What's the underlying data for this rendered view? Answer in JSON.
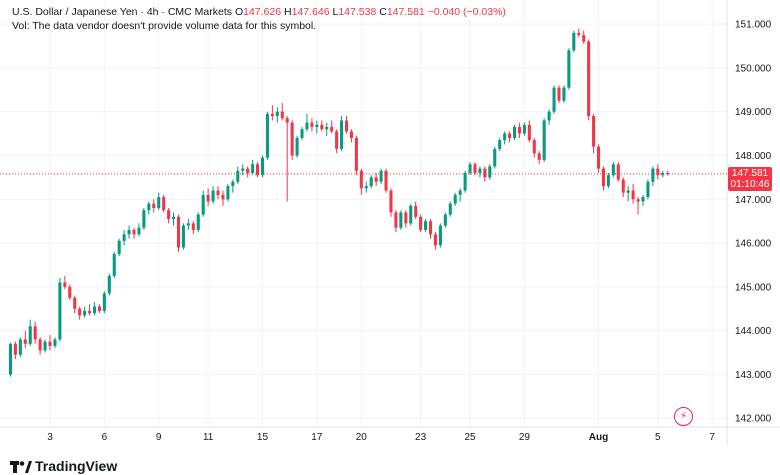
{
  "legend": {
    "symbol": "U.S. Dollar / Japanese Yen · 4h · CMC Markets",
    "o_label": "O",
    "o_value": "147.626",
    "h_label": "H",
    "h_value": "147.646",
    "l_label": "L",
    "l_value": "147.538",
    "c_label": "C",
    "c_value": "147.581",
    "change": "−0.040 (−0.03%)",
    "volume_note": "Vol: The data vendor doesn't provide volume data for this symbol."
  },
  "price_label": {
    "price": "147.581",
    "countdown": "01:10:46"
  },
  "branding": {
    "name": "TradingView"
  },
  "colors": {
    "up": "#089981",
    "down": "#f23645",
    "grid": "#f0f3fa",
    "last_line": "#f23645"
  },
  "icons": {
    "bolt": "lightning-icon"
  },
  "chart_data": {
    "type": "candlestick",
    "title": "U.S. Dollar / Japanese Yen · 4h · CMC Markets",
    "ylim": [
      141.8,
      151.55
    ],
    "y_ticks": [
      "151.000",
      "150.000",
      "149.000",
      "148.000",
      "147.000",
      "146.000",
      "145.000",
      "144.000",
      "143.000",
      "142.000"
    ],
    "x_ticks": [
      {
        "label": "3",
        "bar": 8
      },
      {
        "label": "6",
        "bar": 19
      },
      {
        "label": "9",
        "bar": 30
      },
      {
        "label": "11",
        "bar": 40
      },
      {
        "label": "15",
        "bar": 51
      },
      {
        "label": "17",
        "bar": 62
      },
      {
        "label": "20",
        "bar": 71
      },
      {
        "label": "23",
        "bar": 83
      },
      {
        "label": "25",
        "bar": 93
      },
      {
        "label": "29",
        "bar": 104
      },
      {
        "label": "Aug",
        "bar": 119,
        "bold": true
      },
      {
        "label": "5",
        "bar": 131
      },
      {
        "label": "7",
        "bar": 142
      }
    ],
    "xlim_bars": [
      -0.5,
      145
    ],
    "last_price": 147.581,
    "candles": [
      [
        143.0,
        143.72,
        142.95,
        143.7
      ],
      [
        143.7,
        143.75,
        143.35,
        143.45
      ],
      [
        143.45,
        143.85,
        143.4,
        143.8
      ],
      [
        143.8,
        144.0,
        143.6,
        143.7
      ],
      [
        143.7,
        144.25,
        143.65,
        144.1
      ],
      [
        144.1,
        144.2,
        143.7,
        143.8
      ],
      [
        143.8,
        143.85,
        143.45,
        143.55
      ],
      [
        143.55,
        143.8,
        143.5,
        143.75
      ],
      [
        143.75,
        143.9,
        143.55,
        143.65
      ],
      [
        143.65,
        143.85,
        143.6,
        143.8
      ],
      [
        143.8,
        145.2,
        143.75,
        145.1
      ],
      [
        145.1,
        145.25,
        144.95,
        145.0
      ],
      [
        145.0,
        145.05,
        144.7,
        144.75
      ],
      [
        144.75,
        144.8,
        144.4,
        144.5
      ],
      [
        144.5,
        144.55,
        144.25,
        144.35
      ],
      [
        144.35,
        144.55,
        144.3,
        144.45
      ],
      [
        144.45,
        144.6,
        144.35,
        144.4
      ],
      [
        144.4,
        144.65,
        144.35,
        144.55
      ],
      [
        144.55,
        144.6,
        144.4,
        144.45
      ],
      [
        144.45,
        144.9,
        144.4,
        144.85
      ],
      [
        144.85,
        145.3,
        144.8,
        145.25
      ],
      [
        145.25,
        145.8,
        145.2,
        145.75
      ],
      [
        145.75,
        146.1,
        145.7,
        146.05
      ],
      [
        146.05,
        146.3,
        145.95,
        146.2
      ],
      [
        146.2,
        146.4,
        146.1,
        146.3
      ],
      [
        146.3,
        146.35,
        146.1,
        146.2
      ],
      [
        146.2,
        146.45,
        146.15,
        146.35
      ],
      [
        146.35,
        146.8,
        146.3,
        146.75
      ],
      [
        146.75,
        146.95,
        146.65,
        146.9
      ],
      [
        146.9,
        147.0,
        146.7,
        146.8
      ],
      [
        146.8,
        147.15,
        146.75,
        147.05
      ],
      [
        147.05,
        147.1,
        146.7,
        146.75
      ],
      [
        146.75,
        146.8,
        146.45,
        146.55
      ],
      [
        146.55,
        146.7,
        146.4,
        146.6
      ],
      [
        146.6,
        146.65,
        145.8,
        145.9
      ],
      [
        145.9,
        146.45,
        145.85,
        146.4
      ],
      [
        146.4,
        146.55,
        146.3,
        146.45
      ],
      [
        146.45,
        146.5,
        146.2,
        146.3
      ],
      [
        146.3,
        146.7,
        146.25,
        146.65
      ],
      [
        146.65,
        147.2,
        146.6,
        147.1
      ],
      [
        147.1,
        147.25,
        146.85,
        146.95
      ],
      [
        146.95,
        147.3,
        146.9,
        147.2
      ],
      [
        147.2,
        147.3,
        147.0,
        147.1
      ],
      [
        147.1,
        147.2,
        146.85,
        147.0
      ],
      [
        147.0,
        147.35,
        146.95,
        147.3
      ],
      [
        147.3,
        147.45,
        147.15,
        147.4
      ],
      [
        147.4,
        147.75,
        147.35,
        147.65
      ],
      [
        147.65,
        147.8,
        147.55,
        147.7
      ],
      [
        147.7,
        147.75,
        147.5,
        147.6
      ],
      [
        147.6,
        147.9,
        147.55,
        147.8
      ],
      [
        147.8,
        147.85,
        147.5,
        147.55
      ],
      [
        147.55,
        148.0,
        147.5,
        147.95
      ],
      [
        147.95,
        149.0,
        147.9,
        148.95
      ],
      [
        148.95,
        149.15,
        148.8,
        148.9
      ],
      [
        148.9,
        149.1,
        148.75,
        149.0
      ],
      [
        149.0,
        149.2,
        148.8,
        148.85
      ],
      [
        148.85,
        148.9,
        146.95,
        148.75
      ],
      [
        148.75,
        148.8,
        147.9,
        148.0
      ],
      [
        148.0,
        148.45,
        147.95,
        148.4
      ],
      [
        148.4,
        148.65,
        148.35,
        148.6
      ],
      [
        148.6,
        148.95,
        148.55,
        148.75
      ],
      [
        148.75,
        148.85,
        148.55,
        148.65
      ],
      [
        148.65,
        148.8,
        148.5,
        148.7
      ],
      [
        148.7,
        148.8,
        148.55,
        148.6
      ],
      [
        148.6,
        148.75,
        148.45,
        148.65
      ],
      [
        148.65,
        148.8,
        148.5,
        148.55
      ],
      [
        148.55,
        148.6,
        148.05,
        148.15
      ],
      [
        148.15,
        148.9,
        148.1,
        148.8
      ],
      [
        148.8,
        148.9,
        148.5,
        148.55
      ],
      [
        148.55,
        148.6,
        148.3,
        148.4
      ],
      [
        148.4,
        148.45,
        147.55,
        147.65
      ],
      [
        147.65,
        147.7,
        147.1,
        147.25
      ],
      [
        147.25,
        147.4,
        147.15,
        147.3
      ],
      [
        147.3,
        147.55,
        147.25,
        147.5
      ],
      [
        147.5,
        147.6,
        147.3,
        147.4
      ],
      [
        147.4,
        147.7,
        147.35,
        147.65
      ],
      [
        147.65,
        147.7,
        147.15,
        147.2
      ],
      [
        147.2,
        147.25,
        146.6,
        146.7
      ],
      [
        146.7,
        146.75,
        146.25,
        146.35
      ],
      [
        146.35,
        146.75,
        146.3,
        146.7
      ],
      [
        146.7,
        146.75,
        146.35,
        146.45
      ],
      [
        146.45,
        146.9,
        146.4,
        146.85
      ],
      [
        146.85,
        146.95,
        146.55,
        146.6
      ],
      [
        146.6,
        146.65,
        146.25,
        146.3
      ],
      [
        146.3,
        146.55,
        146.25,
        146.5
      ],
      [
        146.5,
        146.55,
        146.1,
        146.2
      ],
      [
        146.2,
        146.25,
        145.85,
        145.95
      ],
      [
        145.95,
        146.45,
        145.9,
        146.4
      ],
      [
        146.4,
        146.7,
        146.35,
        146.65
      ],
      [
        146.65,
        146.95,
        146.6,
        146.9
      ],
      [
        146.9,
        147.15,
        146.85,
        147.1
      ],
      [
        147.1,
        147.25,
        146.95,
        147.2
      ],
      [
        147.2,
        147.65,
        147.15,
        147.6
      ],
      [
        147.6,
        147.85,
        147.55,
        147.8
      ],
      [
        147.8,
        147.85,
        147.55,
        147.6
      ],
      [
        147.6,
        147.75,
        147.5,
        147.7
      ],
      [
        147.7,
        147.75,
        147.4,
        147.5
      ],
      [
        147.5,
        147.8,
        147.45,
        147.75
      ],
      [
        147.75,
        148.2,
        147.7,
        148.15
      ],
      [
        148.15,
        148.4,
        148.1,
        148.35
      ],
      [
        148.35,
        148.55,
        148.25,
        148.5
      ],
      [
        148.5,
        148.55,
        148.3,
        148.4
      ],
      [
        148.4,
        148.7,
        148.35,
        148.65
      ],
      [
        148.65,
        148.75,
        148.4,
        148.5
      ],
      [
        148.5,
        148.75,
        148.45,
        148.7
      ],
      [
        148.7,
        148.8,
        148.3,
        148.35
      ],
      [
        148.35,
        148.4,
        147.95,
        148.05
      ],
      [
        148.05,
        148.1,
        147.8,
        147.9
      ],
      [
        147.9,
        148.85,
        147.85,
        148.8
      ],
      [
        148.8,
        149.05,
        148.7,
        149.0
      ],
      [
        149.0,
        149.6,
        148.95,
        149.55
      ],
      [
        149.55,
        149.6,
        149.2,
        149.25
      ],
      [
        149.25,
        149.6,
        149.2,
        149.55
      ],
      [
        149.55,
        150.45,
        149.5,
        150.4
      ],
      [
        150.4,
        150.85,
        150.35,
        150.8
      ],
      [
        150.8,
        150.9,
        150.7,
        150.75
      ],
      [
        150.75,
        150.85,
        150.55,
        150.6
      ],
      [
        150.6,
        150.65,
        148.8,
        148.9
      ],
      [
        148.9,
        148.95,
        148.05,
        148.2
      ],
      [
        148.2,
        148.25,
        147.6,
        147.7
      ],
      [
        147.7,
        147.75,
        147.2,
        147.3
      ],
      [
        147.3,
        147.6,
        147.25,
        147.55
      ],
      [
        147.55,
        147.85,
        147.5,
        147.8
      ],
      [
        147.8,
        147.85,
        147.4,
        147.45
      ],
      [
        147.45,
        147.5,
        147.05,
        147.15
      ],
      [
        147.15,
        147.3,
        146.95,
        147.2
      ],
      [
        147.2,
        147.35,
        146.9,
        147.0
      ],
      [
        147.0,
        147.05,
        146.65,
        146.95
      ],
      [
        146.95,
        147.1,
        146.85,
        147.05
      ],
      [
        147.05,
        147.45,
        147.0,
        147.4
      ],
      [
        147.4,
        147.75,
        147.3,
        147.7
      ],
      [
        147.7,
        147.8,
        147.45,
        147.55
      ],
      [
        147.55,
        147.65,
        147.5,
        147.6
      ],
      [
        147.6,
        147.65,
        147.54,
        147.58
      ]
    ]
  }
}
